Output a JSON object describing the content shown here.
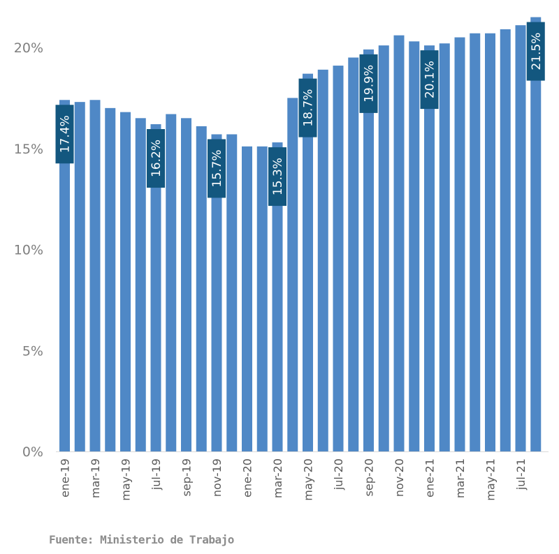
{
  "chart_data": {
    "type": "bar",
    "title": "",
    "xlabel": "",
    "ylabel": "",
    "ylim": [
      0,
      21.6
    ],
    "yticks": [
      0,
      5,
      10,
      15,
      20
    ],
    "ytick_labels": [
      "0%",
      "5%",
      "10%",
      "15%",
      "20%"
    ],
    "grid": false,
    "legend": null,
    "bar_color": "#4f88c6",
    "label_box_color": "#13577f",
    "categories": [
      "ene-19",
      "feb-19",
      "mar-19",
      "abr-19",
      "may-19",
      "jun-19",
      "jul-19",
      "ago-19",
      "sep-19",
      "oct-19",
      "nov-19",
      "dic-19",
      "ene-20",
      "feb-20",
      "mar-20",
      "abr-20",
      "may-20",
      "jun-20",
      "jul-20",
      "ago-20",
      "sep-20",
      "oct-20",
      "nov-20",
      "dic-20",
      "ene-21",
      "feb-21",
      "mar-21",
      "abr-21",
      "may-21",
      "jun-21",
      "jul-21",
      "ago-21"
    ],
    "xtick_labels": [
      "ene-19",
      "",
      "mar-19",
      "",
      "may-19",
      "",
      "jul-19",
      "",
      "sep-19",
      "",
      "nov-19",
      "",
      "ene-20",
      "",
      "mar-20",
      "",
      "may-20",
      "",
      "jul-20",
      "",
      "sep-20",
      "",
      "nov-20",
      "",
      "ene-21",
      "",
      "mar-21",
      "",
      "may-21",
      "",
      "jul-21",
      ""
    ],
    "values": [
      17.4,
      17.3,
      17.4,
      17.0,
      16.8,
      16.5,
      16.2,
      16.7,
      16.5,
      16.1,
      15.7,
      15.7,
      15.1,
      15.1,
      15.3,
      17.5,
      18.7,
      18.9,
      19.1,
      19.5,
      19.9,
      20.1,
      20.6,
      20.3,
      20.1,
      20.2,
      20.5,
      20.7,
      20.7,
      20.9,
      21.1,
      21.5
    ],
    "data_labels": [
      {
        "index": 0,
        "text": "17.4%"
      },
      {
        "index": 6,
        "text": "16.2%"
      },
      {
        "index": 10,
        "text": "15.7%"
      },
      {
        "index": 14,
        "text": "15.3%"
      },
      {
        "index": 16,
        "text": "18.7%"
      },
      {
        "index": 20,
        "text": "19.9%"
      },
      {
        "index": 24,
        "text": "20.1%"
      },
      {
        "index": 31,
        "text": "21.5%"
      }
    ]
  },
  "source": "Fuente: Ministerio de Trabajo"
}
